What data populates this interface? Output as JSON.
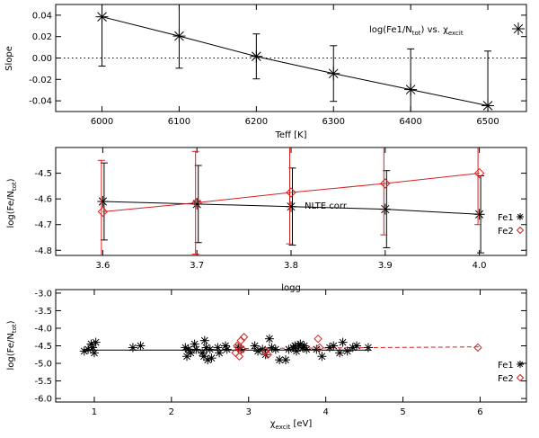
{
  "chart_data": [
    {
      "id": "slope",
      "type": "line",
      "ylabel": "Slope",
      "xlabel": "Teff [K]",
      "xlim": [
        5940,
        6550
      ],
      "ylim": [
        -0.05,
        0.05
      ],
      "xticks": [
        6000,
        6100,
        6200,
        6300,
        6400,
        6500
      ],
      "xtick_labels": [
        "6000",
        "6100",
        "6200",
        "6300",
        "6400",
        "6500"
      ],
      "yticks": [
        -0.04,
        -0.02,
        0.0,
        0.02,
        0.04
      ],
      "ytick_labels": [
        "-0.04",
        "-0.02",
        "0.00",
        "0.02",
        "0.04"
      ],
      "reference_line": 0.0,
      "series": [
        {
          "name": "log(Fe1/Ntot) vs. χexcit",
          "color": "#000000",
          "marker": "asterisk",
          "x": [
            6000,
            6100,
            6200,
            6300,
            6400,
            6500
          ],
          "y": [
            0.0385,
            0.0205,
            0.0015,
            -0.0145,
            -0.0295,
            -0.0445
          ],
          "yerr": [
            0.046,
            0.03,
            0.021,
            0.026,
            0.038,
            0.051
          ]
        }
      ],
      "legend": {
        "prefix": "log(Fe1/N",
        "sub1": "tot",
        "mid": ") vs. χ",
        "sub2": "excit"
      }
    },
    {
      "id": "logg",
      "type": "line",
      "ylabel": "log(Fe/Ntot)",
      "xlabel": "logg",
      "xlim": [
        3.55,
        4.05
      ],
      "ylim": [
        -4.82,
        -4.4
      ],
      "xticks": [
        3.6,
        3.7,
        3.8,
        3.9,
        4.0
      ],
      "xtick_labels": [
        "3.6",
        "3.7",
        "3.8",
        "3.9",
        "4.0"
      ],
      "yticks": [
        -4.8,
        -4.7,
        -4.6,
        -4.5
      ],
      "ytick_labels": [
        "-4.8",
        "-4.7",
        "-4.6",
        "-4.5"
      ],
      "annotation": "NLTE corr.",
      "series": [
        {
          "name": "Fe1",
          "color": "#000000",
          "marker": "asterisk",
          "x": [
            3.6,
            3.7,
            3.8,
            3.9,
            4.0
          ],
          "y": [
            -4.61,
            -4.62,
            -4.63,
            -4.64,
            -4.66
          ],
          "yerr": [
            0.15,
            0.15,
            0.15,
            0.15,
            0.15
          ]
        },
        {
          "name": "Fe2",
          "color": "#d62020",
          "marker": "diamond",
          "x": [
            3.6,
            3.7,
            3.8,
            3.9,
            4.0
          ],
          "y": [
            -4.65,
            -4.615,
            -4.575,
            -4.54,
            -4.5
          ],
          "yerr": [
            0.2,
            0.2,
            0.2,
            0.2,
            0.2
          ]
        }
      ]
    },
    {
      "id": "chi",
      "type": "scatter",
      "ylabel": "log(Fe/Ntot)",
      "xlabel": "χexcit [eV]",
      "xlim": [
        0.5,
        6.6
      ],
      "ylim": [
        -6.1,
        -2.9
      ],
      "xticks": [
        1,
        2,
        3,
        4,
        5,
        6
      ],
      "xtick_labels": [
        "1",
        "2",
        "3",
        "4",
        "5",
        "6"
      ],
      "yticks": [
        -6.0,
        -5.5,
        -5.0,
        -4.5,
        -4.0,
        -3.5,
        -3.0
      ],
      "ytick_labels": [
        "-6.0",
        "-5.5",
        "-5.0",
        "-4.5",
        "-4.0",
        "-3.5",
        "-3.0"
      ],
      "fits": [
        {
          "series": "Fe1",
          "x": [
            0.85,
            4.58
          ],
          "y": [
            -4.62,
            -4.62
          ]
        },
        {
          "series": "Fe2",
          "x": [
            2.85,
            5.98
          ],
          "y": [
            -4.58,
            -4.53
          ]
        }
      ],
      "series": [
        {
          "name": "Fe1",
          "color": "#000000",
          "marker": "asterisk",
          "x": [
            0.87,
            0.92,
            0.96,
            0.98,
            1.0,
            1.02,
            1.5,
            1.6,
            2.18,
            2.2,
            2.22,
            2.25,
            2.3,
            2.32,
            2.4,
            2.42,
            2.43,
            2.45,
            2.47,
            2.5,
            2.52,
            2.6,
            2.62,
            2.7,
            2.72,
            2.87,
            2.9,
            3.08,
            3.12,
            3.18,
            3.22,
            3.27,
            3.3,
            3.35,
            3.4,
            3.48,
            3.52,
            3.58,
            3.6,
            3.62,
            3.65,
            3.67,
            3.7,
            3.72,
            3.75,
            3.88,
            3.95,
            4.05,
            4.1,
            4.18,
            4.22,
            4.28,
            4.35,
            4.4,
            4.55
          ],
          "y": [
            -4.65,
            -4.6,
            -4.45,
            -4.55,
            -4.7,
            -4.4,
            -4.55,
            -4.5,
            -4.55,
            -4.8,
            -4.6,
            -4.7,
            -4.45,
            -4.6,
            -4.7,
            -4.8,
            -4.35,
            -4.55,
            -4.9,
            -4.6,
            -4.85,
            -4.55,
            -4.7,
            -4.5,
            -4.6,
            -4.55,
            -4.6,
            -4.5,
            -4.65,
            -4.6,
            -4.75,
            -4.3,
            -4.55,
            -4.6,
            -4.9,
            -4.9,
            -4.6,
            -4.55,
            -4.5,
            -4.65,
            -4.5,
            -4.45,
            -4.55,
            -4.5,
            -4.6,
            -4.6,
            -4.8,
            -4.55,
            -4.5,
            -4.7,
            -4.4,
            -4.65,
            -4.55,
            -4.5,
            -4.55
          ]
        },
        {
          "name": "Fe2",
          "color": "#d62020",
          "marker": "diamond",
          "x": [
            2.83,
            2.85,
            2.87,
            2.88,
            2.9,
            2.92,
            2.94,
            3.22,
            3.25,
            3.9,
            3.92,
            5.97
          ],
          "y": [
            -4.7,
            -4.5,
            -4.55,
            -4.8,
            -4.35,
            -4.6,
            -4.25,
            -4.65,
            -4.75,
            -4.3,
            -4.55,
            -4.55
          ]
        }
      ],
      "xlabel_parts": {
        "chi": "χ",
        "sub": "excit",
        "unit": " [eV]"
      }
    }
  ],
  "legend_labels": {
    "fe1": "Fe1",
    "fe2": "Fe2"
  }
}
